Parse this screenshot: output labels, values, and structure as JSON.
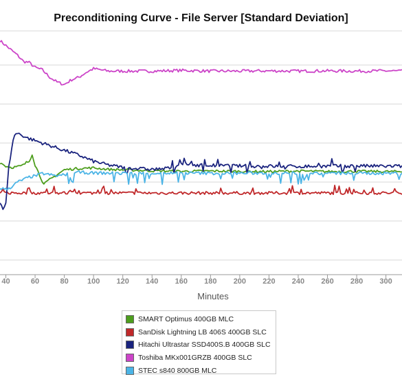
{
  "chart_data": {
    "type": "line",
    "title": "Preconditioning Curve - File Server [Standard Deviation]",
    "xlabel": "Minutes",
    "ylabel": "",
    "xlim": [
      36,
      311
    ],
    "ylim": [
      0,
      100
    ],
    "x_ticks": [
      40,
      60,
      80,
      100,
      120,
      140,
      160,
      180,
      200,
      220,
      240,
      260,
      280,
      300
    ],
    "x_tick_labels": [
      "40",
      "60",
      "80",
      "100",
      "120",
      "140",
      "160",
      "180",
      "200",
      "220",
      "240",
      "260",
      "280",
      "300"
    ],
    "gridlines_y": [
      6,
      22,
      38,
      54,
      70,
      86,
      100
    ],
    "grid": true,
    "legend_position": "bottom",
    "series": [
      {
        "name": "SMART Optimus 400GB MLC",
        "color": "#4d9e1d",
        "x": [
          36,
          40,
          44,
          48,
          50,
          52,
          54,
          56,
          58,
          60,
          63,
          66,
          70,
          75,
          80,
          90,
          100,
          110,
          120,
          130,
          140,
          160,
          180,
          200,
          220,
          240,
          260,
          280,
          300,
          311
        ],
        "y": [
          46,
          44.5,
          44,
          44.3,
          44.5,
          45,
          46,
          46.5,
          49.5,
          45,
          41,
          37,
          39,
          41,
          43,
          43.6,
          43.8,
          43.2,
          43.0,
          42.8,
          42.6,
          42.4,
          42.5,
          42.4,
          42.3,
          42.5,
          42.3,
          42.4,
          42.3,
          42.3
        ],
        "noise": 0.5
      },
      {
        "name": "SanDisk Lightning LB 406S 400GB SLC",
        "color": "#c0282a",
        "x": [
          36,
          60,
          100,
          140,
          180,
          220,
          260,
          300,
          311
        ],
        "y": [
          33.5,
          33.5,
          33.5,
          33.5,
          33.5,
          33.5,
          33.5,
          33.5,
          33.5
        ],
        "noise": 0.6
      },
      {
        "name": "Hitachi Ultrastar SSD400S.B 400GB SLC",
        "color": "#1a237e",
        "x": [
          36,
          38,
          40,
          42,
          44,
          46,
          48,
          50,
          55,
          60,
          65,
          70,
          75,
          80,
          90,
          100,
          110,
          120,
          130,
          140,
          150,
          160,
          170,
          180,
          200,
          220,
          240,
          260,
          280,
          300,
          311
        ],
        "y": [
          30,
          27,
          29,
          44,
          52,
          57.5,
          58,
          57.5,
          56,
          55,
          54,
          53,
          52,
          51,
          49,
          46.5,
          45,
          44,
          43.5,
          43.2,
          43.5,
          45.3,
          45,
          44.8,
          44.6,
          44.5,
          44.4,
          44.5,
          44.6,
          44.5,
          44.5
        ],
        "noise": 0.7
      },
      {
        "name": "Toshiba MKx001GRZB 400GB SLC",
        "color": "#cc44c8",
        "x": [
          36,
          40,
          44,
          48,
          52,
          56,
          60,
          65,
          70,
          75,
          80,
          85,
          90,
          95,
          100,
          110,
          120,
          140,
          160,
          180,
          200,
          220,
          240,
          260,
          280,
          300,
          311
        ],
        "y": [
          96,
          94,
          92,
          90,
          87.5,
          87,
          85,
          84,
          81,
          79,
          78,
          80,
          81,
          83,
          84.5,
          83.5,
          83.5,
          83.5,
          83.8,
          83.5,
          83.5,
          83.6,
          83.5,
          83.6,
          83.5,
          83.6,
          83.5
        ],
        "noise": 0.6
      },
      {
        "name": "STEC s840 800GB MLC",
        "color": "#4bb4e6",
        "x": [
          36,
          40,
          44,
          48,
          52,
          56,
          60,
          65,
          70,
          75,
          80,
          90,
          100,
          120,
          140,
          160,
          180,
          200,
          220,
          240,
          260,
          280,
          300,
          311
        ],
        "y": [
          35.5,
          35,
          36,
          38,
          39,
          40,
          40.5,
          41.5,
          41,
          40.5,
          41,
          42,
          41.7,
          41.6,
          41.6,
          41.7,
          41.6,
          41.6,
          41.7,
          41.6,
          41.6,
          41.6,
          41.6,
          41.6
        ],
        "noise": 0.6
      }
    ]
  }
}
